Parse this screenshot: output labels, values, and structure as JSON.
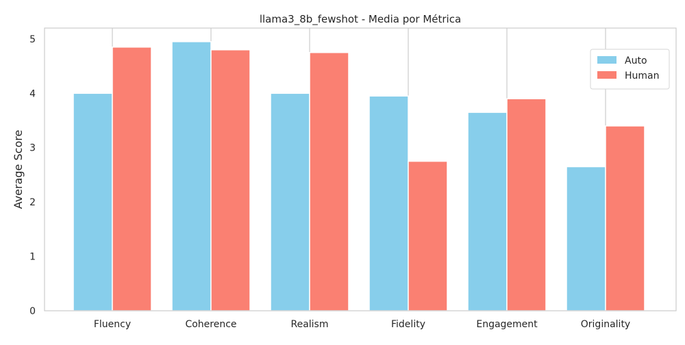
{
  "chart_data": {
    "type": "bar",
    "title": "llama3_8b_fewshot - Media por Métrica",
    "xlabel": "",
    "ylabel": "Average Score",
    "categories": [
      "Fluency",
      "Coherence",
      "Realism",
      "Fidelity",
      "Engagement",
      "Originality"
    ],
    "series": [
      {
        "name": "Auto",
        "color": "#87ceeb",
        "values": [
          4.0,
          4.95,
          4.0,
          3.95,
          3.65,
          2.65
        ]
      },
      {
        "name": "Human",
        "color": "#fa8072",
        "values": [
          4.85,
          4.8,
          4.75,
          2.75,
          3.9,
          3.4
        ]
      }
    ],
    "ylim": [
      0,
      5.2
    ],
    "yticks": [
      "0",
      "1",
      "2",
      "3",
      "4",
      "5"
    ],
    "grid": "vertical",
    "legend": "top-right"
  }
}
